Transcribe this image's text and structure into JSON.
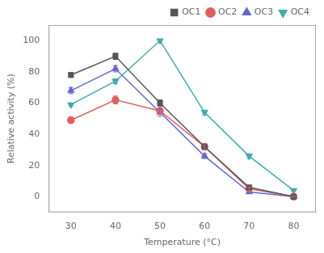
{
  "chart_data": {
    "type": "line",
    "xlabel": "Temperature (°C)",
    "ylabel": "Relative activity (%)",
    "x": [
      30,
      40,
      50,
      60,
      70,
      80
    ],
    "series": [
      {
        "name": "OC1",
        "color": "#555555",
        "marker": "square",
        "values": [
          78,
          90,
          60,
          32,
          6,
          0
        ],
        "yerr": [
          1.5,
          2.0,
          2.0,
          2.0,
          1.0,
          0.5
        ]
      },
      {
        "name": "OC2",
        "color": "#e06060",
        "marker": "circle",
        "values": [
          49,
          62,
          55,
          32,
          5,
          0
        ],
        "yerr": [
          2.0,
          2.5,
          2.0,
          2.0,
          1.0,
          0.5
        ]
      },
      {
        "name": "OC3",
        "color": "#6666cc",
        "marker": "triangle-up",
        "values": [
          68,
          82,
          54,
          26,
          3,
          0
        ],
        "yerr": [
          2.0,
          2.0,
          2.5,
          1.5,
          1.0,
          0.5
        ]
      },
      {
        "name": "OC4",
        "color": "#44aaaa",
        "marker": "triangle-down",
        "values": [
          59,
          74,
          100,
          54,
          26,
          4
        ],
        "yerr": [
          1.0,
          1.5,
          1.0,
          1.5,
          1.5,
          0.5
        ]
      }
    ],
    "xlim": [
      25,
      85
    ],
    "xticks": [
      30,
      40,
      50,
      60,
      70,
      80
    ],
    "ylim": [
      -10,
      110
    ],
    "yticks": [
      0,
      20,
      40,
      60,
      80,
      100
    ],
    "grid": false,
    "legend": "upper right"
  }
}
